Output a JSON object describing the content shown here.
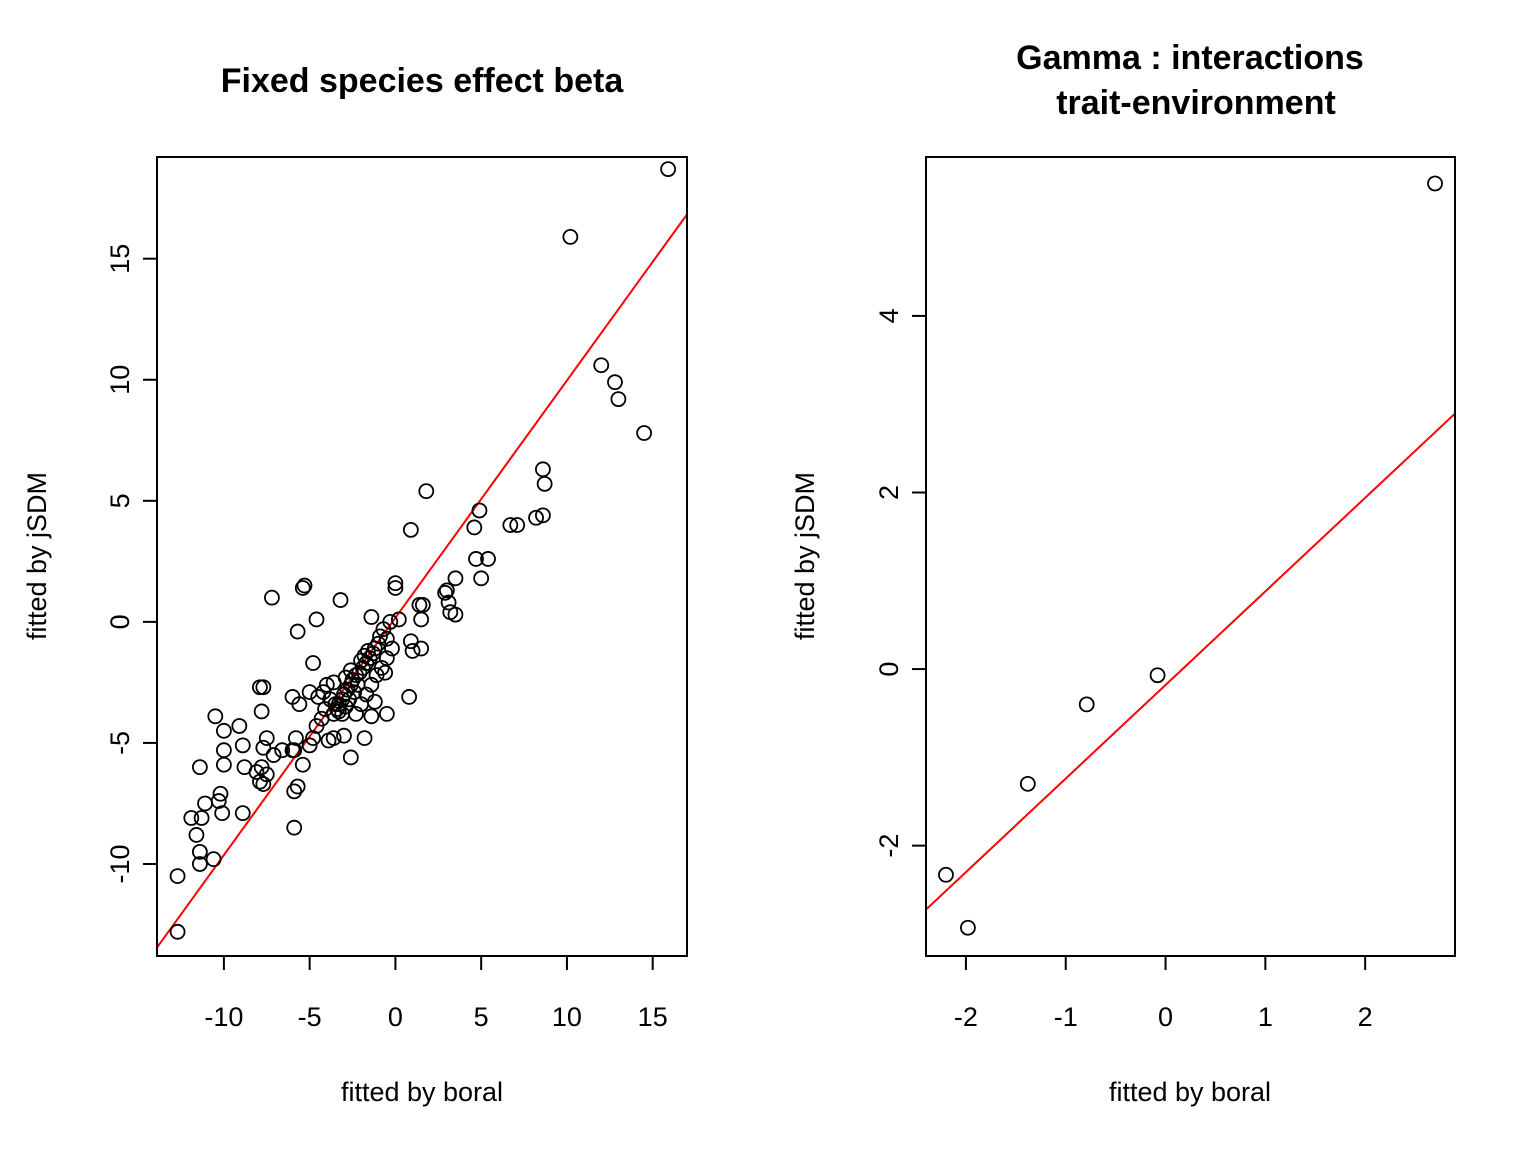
{
  "chart_data": [
    {
      "type": "scatter",
      "title_lines": [
        "Fixed species effect beta"
      ],
      "xlabel": "fitted by boral",
      "ylabel": "fitted by jSDM",
      "xlim": [
        -13.9,
        17.0
      ],
      "ylim": [
        -13.8,
        19.2
      ],
      "xticks": [
        -10,
        -5,
        0,
        5,
        10,
        15
      ],
      "yticks": [
        -10,
        -5,
        0,
        5,
        10,
        15
      ],
      "line": {
        "intercept": 0.17,
        "slope": 0.98,
        "color": "#ff0000"
      },
      "points": [
        [
          15.9,
          18.7
        ],
        [
          10.2,
          15.9
        ],
        [
          12.0,
          10.6
        ],
        [
          12.8,
          9.9
        ],
        [
          13.0,
          9.2
        ],
        [
          14.5,
          7.8
        ],
        [
          8.6,
          6.3
        ],
        [
          8.7,
          5.7
        ],
        [
          8.6,
          4.4
        ],
        [
          8.2,
          4.3
        ],
        [
          6.7,
          4.0
        ],
        [
          7.1,
          4.0
        ],
        [
          4.9,
          4.6
        ],
        [
          4.6,
          3.9
        ],
        [
          1.8,
          5.4
        ],
        [
          0.9,
          3.8
        ],
        [
          4.7,
          2.6
        ],
        [
          5.4,
          2.6
        ],
        [
          5.0,
          1.8
        ],
        [
          3.5,
          1.8
        ],
        [
          3.0,
          1.3
        ],
        [
          2.9,
          1.2
        ],
        [
          3.1,
          0.8
        ],
        [
          3.2,
          0.4
        ],
        [
          3.5,
          0.3
        ],
        [
          1.4,
          0.7
        ],
        [
          1.6,
          0.7
        ],
        [
          0.0,
          1.6
        ],
        [
          0.0,
          1.4
        ],
        [
          1.5,
          0.1
        ],
        [
          0.9,
          -0.8
        ],
        [
          1.0,
          -1.2
        ],
        [
          1.5,
          -1.1
        ],
        [
          0.8,
          -3.1
        ],
        [
          0.2,
          0.1
        ],
        [
          -0.5,
          -0.7
        ],
        [
          -5.3,
          1.5
        ],
        [
          -5.4,
          1.4
        ],
        [
          -7.2,
          1.0
        ],
        [
          -3.2,
          0.9
        ],
        [
          -4.6,
          0.1
        ],
        [
          -5.7,
          -0.4
        ],
        [
          -1.4,
          0.2
        ],
        [
          -0.3,
          0.0
        ],
        [
          -0.7,
          -0.3
        ],
        [
          -0.9,
          -0.6
        ],
        [
          -1.0,
          -0.9
        ],
        [
          -1.2,
          -1.1
        ],
        [
          -1.3,
          -1.3
        ],
        [
          -1.5,
          -1.5
        ],
        [
          -1.7,
          -1.7
        ],
        [
          -1.9,
          -1.9
        ],
        [
          -2.1,
          -2.1
        ],
        [
          -2.3,
          -2.2
        ],
        [
          -2.5,
          -2.4
        ],
        [
          -2.6,
          -2.6
        ],
        [
          -2.8,
          -2.8
        ],
        [
          -3.0,
          -3.0
        ],
        [
          -3.1,
          -3.2
        ],
        [
          -3.3,
          -3.4
        ],
        [
          -3.4,
          -3.6
        ],
        [
          -3.6,
          -3.8
        ],
        [
          -2.2,
          -2.6
        ],
        [
          -2.4,
          -2.9
        ],
        [
          -2.7,
          -3.2
        ],
        [
          -2.9,
          -3.5
        ],
        [
          -3.1,
          -3.8
        ],
        [
          -2.0,
          -1.6
        ],
        [
          -1.8,
          -1.4
        ],
        [
          -1.6,
          -1.2
        ],
        [
          -2.6,
          -2.0
        ],
        [
          -2.9,
          -2.3
        ],
        [
          -0.2,
          -1.1
        ],
        [
          -0.5,
          -1.5
        ],
        [
          -0.8,
          -1.9
        ],
        [
          -1.1,
          -2.2
        ],
        [
          -1.4,
          -2.6
        ],
        [
          -1.7,
          -3.0
        ],
        [
          -2.0,
          -3.4
        ],
        [
          -2.3,
          -3.8
        ],
        [
          -0.6,
          -2.1
        ],
        [
          -1.2,
          -3.3
        ],
        [
          -0.5,
          -3.8
        ],
        [
          -1.4,
          -3.9
        ],
        [
          -1.8,
          -4.8
        ],
        [
          -2.6,
          -5.6
        ],
        [
          -3.0,
          -4.7
        ],
        [
          -3.6,
          -4.8
        ],
        [
          -3.9,
          -4.9
        ],
        [
          -4.1,
          -3.6
        ],
        [
          -4.3,
          -4.0
        ],
        [
          -4.6,
          -4.3
        ],
        [
          -4.8,
          -4.8
        ],
        [
          -5.0,
          -5.1
        ],
        [
          -3.6,
          -2.5
        ],
        [
          -4.0,
          -2.6
        ],
        [
          -4.2,
          -2.9
        ],
        [
          -4.5,
          -3.1
        ],
        [
          -5.0,
          -2.9
        ],
        [
          -3.8,
          -3.2
        ],
        [
          -3.5,
          -3.4
        ],
        [
          -3.3,
          -3.7
        ],
        [
          -5.6,
          -3.4
        ],
        [
          -6.0,
          -3.1
        ],
        [
          -4.8,
          -1.7
        ],
        [
          -7.7,
          -2.7
        ],
        [
          -7.9,
          -2.7
        ],
        [
          -7.8,
          -3.7
        ],
        [
          -9.1,
          -4.3
        ],
        [
          -10.5,
          -3.9
        ],
        [
          -10.0,
          -4.5
        ],
        [
          -8.9,
          -5.1
        ],
        [
          -10.0,
          -5.3
        ],
        [
          -7.5,
          -4.8
        ],
        [
          -7.7,
          -5.2
        ],
        [
          -7.1,
          -5.5
        ],
        [
          -6.6,
          -5.3
        ],
        [
          -5.8,
          -4.8
        ],
        [
          -5.9,
          -5.3
        ],
        [
          -5.4,
          -5.9
        ],
        [
          -6.0,
          -5.3
        ],
        [
          -8.8,
          -6.0
        ],
        [
          -10.0,
          -5.9
        ],
        [
          -8.1,
          -6.2
        ],
        [
          -7.8,
          -6.0
        ],
        [
          -7.5,
          -6.3
        ],
        [
          -7.9,
          -6.6
        ],
        [
          -7.7,
          -6.7
        ],
        [
          -5.9,
          -7.0
        ],
        [
          -5.7,
          -6.8
        ],
        [
          -10.2,
          -7.1
        ],
        [
          -10.3,
          -7.4
        ],
        [
          -11.4,
          -6.0
        ],
        [
          -11.1,
          -7.5
        ],
        [
          -10.1,
          -7.9
        ],
        [
          -11.3,
          -8.1
        ],
        [
          -11.9,
          -8.1
        ],
        [
          -8.9,
          -7.9
        ],
        [
          -5.9,
          -8.5
        ],
        [
          -11.6,
          -8.8
        ],
        [
          -11.4,
          -9.5
        ],
        [
          -11.4,
          -10.0
        ],
        [
          -10.6,
          -9.8
        ],
        [
          -12.7,
          -10.5
        ],
        [
          -12.7,
          -12.8
        ]
      ]
    },
    {
      "type": "scatter",
      "title_lines": [
        "Gamma : interactions",
        "trait-environment"
      ],
      "xlabel": "fitted by boral",
      "ylabel": "fitted by jSDM",
      "xlim": [
        -2.4,
        2.9
      ],
      "ylim": [
        -3.25,
        5.8
      ],
      "xticks": [
        -2,
        -1,
        0,
        1,
        2
      ],
      "yticks": [
        -2,
        0,
        2,
        4
      ],
      "line": {
        "intercept": -0.18,
        "slope": 1.06,
        "color": "#ff0000"
      },
      "points": [
        [
          2.7,
          5.5
        ],
        [
          -0.08,
          -0.07
        ],
        [
          -0.79,
          -0.4
        ],
        [
          -1.38,
          -1.3
        ],
        [
          -2.2,
          -2.33
        ],
        [
          -1.98,
          -2.93
        ]
      ]
    }
  ]
}
